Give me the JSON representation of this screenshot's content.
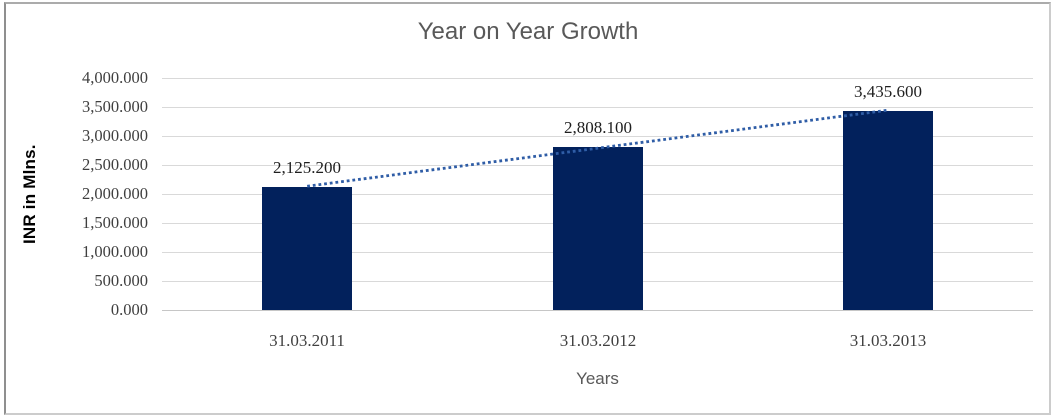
{
  "chart_data": {
    "type": "bar",
    "title": "Year on Year Growth",
    "categories": [
      "31.03.2011",
      "31.03.2012",
      "31.03.2013"
    ],
    "values": [
      2125.2,
      2808.1,
      3435.6
    ],
    "data_labels": [
      "2,125.200",
      "2,808.100",
      "3,435.600"
    ],
    "xlabel": "Years",
    "ylabel": "INR in Mlns.",
    "ylim": [
      0,
      4000
    ],
    "ytick_step": 500,
    "ytick_labels": [
      "0.000",
      "500.000",
      "1,000.000",
      "1,500.000",
      "2,000.000",
      "2,500.000",
      "3,000.000",
      "3,500.000",
      "4,000.000"
    ],
    "grid": true,
    "legend": "none",
    "trendline": {
      "type": "linear",
      "style": "dotted"
    },
    "colors": {
      "bar": "#02215c",
      "trendline": "#2f5da6",
      "gridline": "#d9d9d9",
      "axis_line": "#c6c6c6",
      "title": "#595959",
      "axis_title": "#595959",
      "y_axis_title_text": "#000000",
      "tick_label": "#3f3f3f",
      "data_label": "#1f1f1f"
    }
  }
}
